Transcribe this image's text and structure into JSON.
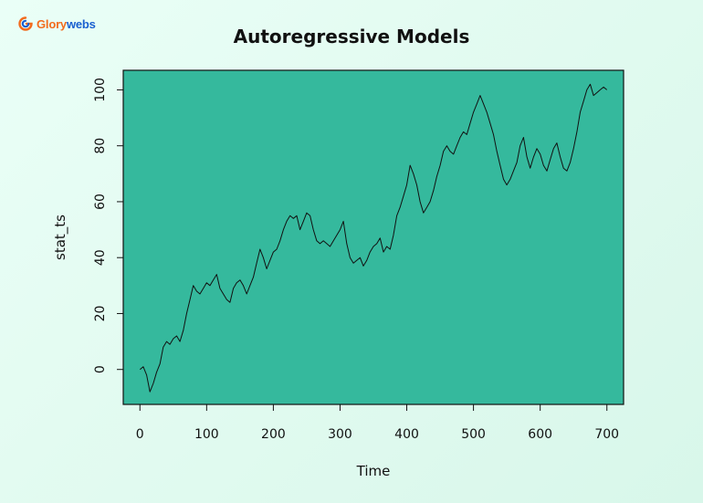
{
  "brand": {
    "name_part1": "Glory",
    "name_part2": "webs",
    "icon": "glorywebs-logo-icon"
  },
  "chart_data": {
    "type": "line",
    "title": "Autoregressive Models",
    "xlabel": "Time",
    "ylabel": "stat_ts",
    "xlim": [
      -25,
      725
    ],
    "ylim": [
      -12.5,
      107
    ],
    "xticks": [
      0,
      100,
      200,
      300,
      400,
      500,
      600,
      700
    ],
    "yticks": [
      0,
      20,
      40,
      60,
      80,
      100
    ],
    "plot_background": "#35b99d",
    "line_color": "#111111",
    "grid": false,
    "legend": "none",
    "series": [
      {
        "x": [
          0,
          5,
          10,
          15,
          20,
          25,
          30,
          35,
          40,
          45,
          50,
          55,
          60,
          65,
          70,
          75,
          80,
          85,
          90,
          95,
          100,
          105,
          110,
          115,
          120,
          125,
          130,
          135,
          140,
          145,
          150,
          155,
          160,
          165,
          170,
          175,
          180,
          185,
          190,
          195,
          200,
          205,
          210,
          215,
          220,
          225,
          230,
          235,
          240,
          245,
          250,
          255,
          260,
          265,
          270,
          275,
          280,
          285,
          290,
          295,
          300,
          305,
          310,
          315,
          320,
          325,
          330,
          335,
          340,
          345,
          350,
          355,
          360,
          365,
          370,
          375,
          380,
          385,
          390,
          395,
          400,
          405,
          410,
          415,
          420,
          425,
          430,
          435,
          440,
          445,
          450,
          455,
          460,
          465,
          470,
          475,
          480,
          485,
          490,
          495,
          500,
          505,
          510,
          515,
          520,
          525,
          530,
          535,
          540,
          545,
          550,
          555,
          560,
          565,
          570,
          575,
          580,
          585,
          590,
          595,
          600,
          605,
          610,
          615,
          620,
          625,
          630,
          635,
          640,
          645,
          650,
          655,
          660,
          665,
          670,
          675,
          680,
          685,
          690,
          695,
          700
        ],
        "y": [
          0,
          1,
          -2,
          -8,
          -5,
          -1,
          2,
          8,
          10,
          9,
          11,
          12,
          10,
          14,
          20,
          25,
          30,
          28,
          27,
          29,
          31,
          30,
          32,
          34,
          29,
          27,
          25,
          24,
          29,
          31,
          32,
          30,
          27,
          30,
          33,
          38,
          43,
          40,
          36,
          39,
          42,
          43,
          46,
          50,
          53,
          55,
          54,
          55,
          50,
          53,
          56,
          55,
          50,
          46,
          45,
          46,
          45,
          44,
          46,
          48,
          50,
          53,
          45,
          40,
          38,
          39,
          40,
          37,
          39,
          42,
          44,
          45,
          47,
          42,
          44,
          43,
          48,
          55,
          58,
          62,
          66,
          73,
          70,
          66,
          60,
          56,
          58,
          60,
          64,
          69,
          73,
          78,
          80,
          78,
          77,
          80,
          83,
          85,
          84,
          88,
          92,
          95,
          98,
          95,
          92,
          88,
          84,
          78,
          73,
          68,
          66,
          68,
          71,
          74,
          80,
          83,
          76,
          72,
          76,
          79,
          77,
          73,
          71,
          75,
          79,
          81,
          76,
          72,
          71,
          74,
          79,
          85,
          92,
          96,
          100,
          102,
          98,
          99,
          100,
          101,
          100
        ]
      }
    ]
  }
}
